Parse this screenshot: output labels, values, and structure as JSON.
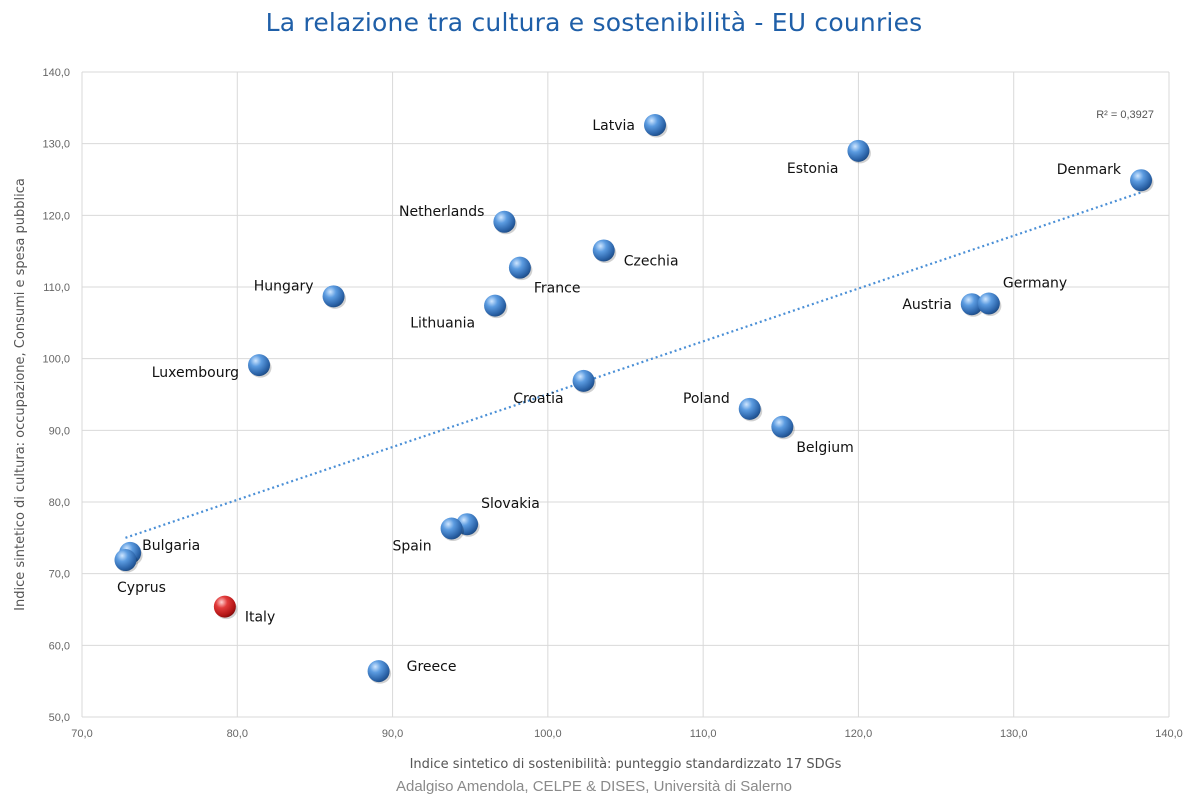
{
  "title": "La relazione tra cultura e sostenibilità - EU counries",
  "credit": "Adalgiso Amendola,  CELPE & DISES, Università di Salerno",
  "colors": {
    "point": "#3a7fc4",
    "highlight": "#d42020",
    "trend": "#4a8fd6",
    "grid": "#d9d9d9",
    "title": "#1f5fa8"
  },
  "chart_data": {
    "type": "scatter",
    "title": "La relazione tra cultura e sostenibilità - EU counries",
    "xlabel": "Indice sintetico di sostenibilità: punteggio standardizzato 17 SDGs",
    "ylabel": "Indice sintetico di cultura: occupazione, Consumi e spesa pubblica",
    "xlim": [
      70,
      140
    ],
    "ylim": [
      50,
      140
    ],
    "xticks": [
      "70,0",
      "80,0",
      "90,0",
      "100,0",
      "110,0",
      "120,0",
      "130,0",
      "140,0"
    ],
    "yticks": [
      "50,0",
      "60,0",
      "70,0",
      "80,0",
      "90,0",
      "100,0",
      "110,0",
      "120,0",
      "130,0",
      "140,0"
    ],
    "grid": true,
    "points": [
      {
        "label": "Latvia",
        "x": 106.9,
        "y": 132.6,
        "anchor": "left"
      },
      {
        "label": "Estonia",
        "x": 120.0,
        "y": 129.0,
        "anchor": "below-left"
      },
      {
        "label": "Denmark",
        "x": 138.2,
        "y": 124.9,
        "anchor": "above-left"
      },
      {
        "label": "Netherlands",
        "x": 97.2,
        "y": 119.1,
        "anchor": "above-left"
      },
      {
        "label": "Czechia",
        "x": 103.6,
        "y": 115.1,
        "anchor": "right-below"
      },
      {
        "label": "France",
        "x": 98.2,
        "y": 112.7,
        "anchor": "below-right"
      },
      {
        "label": "Hungary",
        "x": 86.2,
        "y": 108.7,
        "anchor": "above-left"
      },
      {
        "label": "Lithuania",
        "x": 96.6,
        "y": 107.4,
        "anchor": "below-left"
      },
      {
        "label": "Austria",
        "x": 127.3,
        "y": 107.6,
        "anchor": "left"
      },
      {
        "label": "Germany",
        "x": 128.4,
        "y": 107.7,
        "anchor": "above-right"
      },
      {
        "label": "Luxembourg",
        "x": 81.4,
        "y": 99.1,
        "anchor": "left-below"
      },
      {
        "label": "Croatia",
        "x": 102.3,
        "y": 96.9,
        "anchor": "below-left"
      },
      {
        "label": "Poland",
        "x": 113.0,
        "y": 93.0,
        "anchor": "above-left"
      },
      {
        "label": "Belgium",
        "x": 115.1,
        "y": 90.5,
        "anchor": "below-right"
      },
      {
        "label": "Slovakia",
        "x": 94.8,
        "y": 76.9,
        "anchor": "above-right"
      },
      {
        "label": "Spain",
        "x": 93.8,
        "y": 76.3,
        "anchor": "below-left"
      },
      {
        "label": "Bulgaria",
        "x": 73.1,
        "y": 72.9,
        "anchor": "right-above"
      },
      {
        "label": "Cyprus",
        "x": 72.8,
        "y": 71.9,
        "anchor": "below"
      },
      {
        "label": "Italy",
        "x": 79.2,
        "y": 65.4,
        "anchor": "right-below",
        "highlight": true
      },
      {
        "label": "Greece",
        "x": 89.1,
        "y": 56.4,
        "anchor": "right"
      }
    ],
    "trendline": {
      "type": "logarithmic",
      "x_start": 72.8,
      "y_start": 75.0,
      "x_end": 138.2,
      "y_end": 123.2,
      "r2_label": "R² = 0,3927"
    }
  }
}
